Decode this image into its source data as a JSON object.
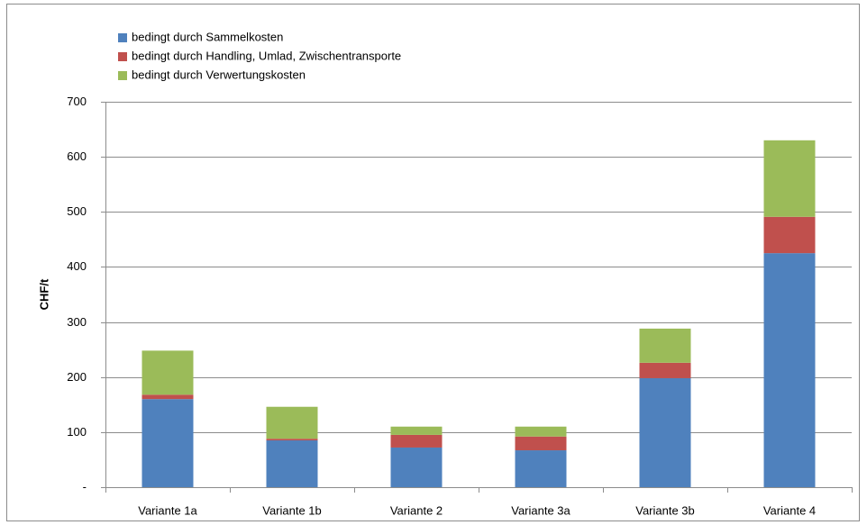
{
  "chart_data": {
    "type": "stacked_bar",
    "y_label": "CHF/t",
    "categories": [
      "Variante 1a",
      "Variante 1b",
      "Variante 2",
      "Variante 3a",
      "Variante 3b",
      "Variante 4"
    ],
    "series": [
      {
        "name": "bedingt durch Sammelkosten",
        "color": "#4f81bd",
        "values": [
          160,
          85,
          72,
          67,
          198,
          425
        ]
      },
      {
        "name": "bedingt durch Handling, Umlad, Zwischentransporte",
        "color": "#c0504d",
        "values": [
          8,
          3,
          23,
          25,
          28,
          66
        ]
      },
      {
        "name": "bedingt durch Verwertungskosten",
        "color": "#9bbb59",
        "values": [
          80,
          58,
          15,
          18,
          62,
          139
        ]
      }
    ],
    "ylim": [
      0,
      700
    ],
    "yticks": [
      {
        "value": 0,
        "label": "-"
      },
      100,
      200,
      300,
      400,
      500,
      600,
      700
    ],
    "grid": true,
    "legend": "top-left"
  }
}
